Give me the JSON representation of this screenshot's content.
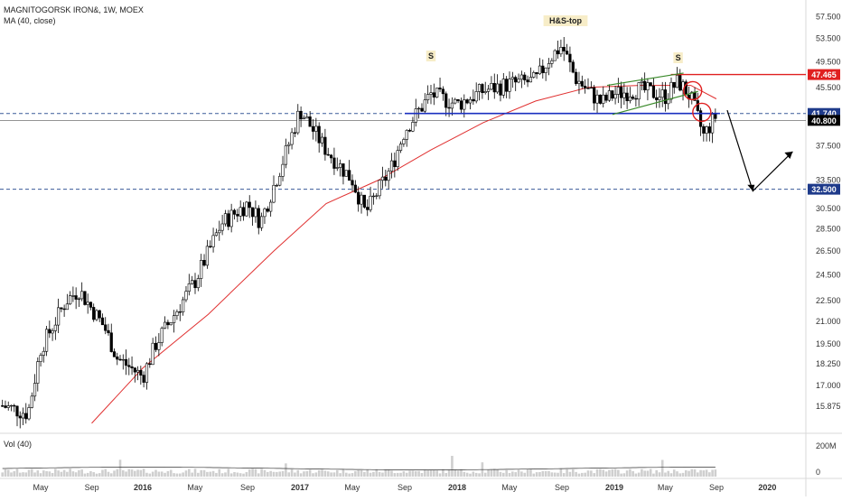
{
  "header": {
    "symbol": "MAGNITOGORSK IRON&, 1W, MOEX",
    "ma_label": "MA (40, close)",
    "vol_label": "Vol (40)"
  },
  "colors": {
    "up_candle": "#ffffff",
    "down_candle": "#000000",
    "ma_line": "#e03030",
    "support_line": "#1a2fbf",
    "resistance_line": "#e02020",
    "channel_line": "#3a8a2a",
    "dashed_line": "#3a5a9a",
    "tag_blue": "#1e3a8a",
    "tag_red": "#e02020",
    "tag_black": "#000000"
  },
  "chart_data": {
    "type": "candlestick",
    "title": "MAGNITOGORSK IRON&, 1W, MOEX",
    "ylim": [
      14.6,
      60.0
    ],
    "y_scale": "log",
    "y_ticks": [
      "57.500",
      "53.500",
      "49.500",
      "45.500",
      "41.740",
      "40.800",
      "37.500",
      "33.500",
      "32.500",
      "30.500",
      "28.500",
      "26.500",
      "24.500",
      "22.500",
      "21.000",
      "19.500",
      "18.250",
      "17.000",
      "15.875"
    ],
    "x_ticks": [
      "May",
      "Sep",
      "2016",
      "May",
      "Sep",
      "2017",
      "May",
      "Sep",
      "2018",
      "May",
      "Sep",
      "2019",
      "May",
      "Sep",
      "2020"
    ],
    "approx_path": [
      {
        "date": "2015-02",
        "price": 15.9
      },
      {
        "date": "2015-04",
        "price": 15.5
      },
      {
        "date": "2015-05",
        "price": 19.2
      },
      {
        "date": "2015-07",
        "price": 22.5
      },
      {
        "date": "2015-08",
        "price": 23.3
      },
      {
        "date": "2015-10",
        "price": 20.6
      },
      {
        "date": "2015-11",
        "price": 18.6
      },
      {
        "date": "2016-01",
        "price": 17.5
      },
      {
        "date": "2016-02",
        "price": 19.5
      },
      {
        "date": "2016-05",
        "price": 24.0
      },
      {
        "date": "2016-07",
        "price": 29.0
      },
      {
        "date": "2016-09",
        "price": 31.0
      },
      {
        "date": "2016-10",
        "price": 29.2
      },
      {
        "date": "2016-12",
        "price": 37.0
      },
      {
        "date": "2017-01",
        "price": 42.2
      },
      {
        "date": "2017-03",
        "price": 37.0
      },
      {
        "date": "2017-05",
        "price": 33.5
      },
      {
        "date": "2017-06",
        "price": 30.0
      },
      {
        "date": "2017-08",
        "price": 35.0
      },
      {
        "date": "2017-09",
        "price": 39.5
      },
      {
        "date": "2017-11",
        "price": 44.5
      },
      {
        "date": "2018-01",
        "price": 43.0
      },
      {
        "date": "2018-03",
        "price": 45.0
      },
      {
        "date": "2018-05",
        "price": 46.0
      },
      {
        "date": "2018-07",
        "price": 46.5
      },
      {
        "date": "2018-08",
        "price": 50.0
      },
      {
        "date": "2018-09",
        "price": 52.2
      },
      {
        "date": "2018-10",
        "price": 47.0
      },
      {
        "date": "2018-11",
        "price": 45.0
      },
      {
        "date": "2018-12",
        "price": 43.2
      },
      {
        "date": "2019-01",
        "price": 44.5
      },
      {
        "date": "2019-03",
        "price": 45.2
      },
      {
        "date": "2019-05",
        "price": 44.2
      },
      {
        "date": "2019-06",
        "price": 46.4
      },
      {
        "date": "2019-07",
        "price": 44.0
      },
      {
        "date": "2019-08",
        "price": 38.8
      },
      {
        "date": "2019-09",
        "price": 41.5
      }
    ],
    "moving_average": {
      "name": "MA (40, close)",
      "points": [
        {
          "date": "2015-09",
          "value": 15.0
        },
        {
          "date": "2016-01",
          "value": 18.0
        },
        {
          "date": "2016-06",
          "value": 21.5
        },
        {
          "date": "2016-11",
          "value": 26.5
        },
        {
          "date": "2017-03",
          "value": 31.0
        },
        {
          "date": "2017-07",
          "value": 33.5
        },
        {
          "date": "2017-11",
          "value": 37.0
        },
        {
          "date": "2018-03",
          "value": 40.5
        },
        {
          "date": "2018-07",
          "value": 43.5
        },
        {
          "date": "2018-11",
          "value": 45.5
        },
        {
          "date": "2019-03",
          "value": 45.8
        },
        {
          "date": "2019-07",
          "value": 45.8
        },
        {
          "date": "2019-09",
          "value": 43.8
        }
      ]
    },
    "annotations": [
      {
        "text": "S",
        "date": "2017-11"
      },
      {
        "text": "H&S-top",
        "date": "2018-09"
      },
      {
        "text": "S",
        "date": "2019-06"
      }
    ],
    "horizontal_levels": [
      {
        "value": 47.465,
        "label": "47.465",
        "style": "resistance"
      },
      {
        "value": 41.74,
        "label": "41.740",
        "style": "support"
      },
      {
        "value": 40.8,
        "label": "40.800",
        "style": "last_price"
      },
      {
        "value": 32.5,
        "label": "32.500",
        "style": "target"
      }
    ],
    "volume": {
      "label": "Vol (40)",
      "y_ticks": [
        "200M",
        "0"
      ]
    }
  }
}
